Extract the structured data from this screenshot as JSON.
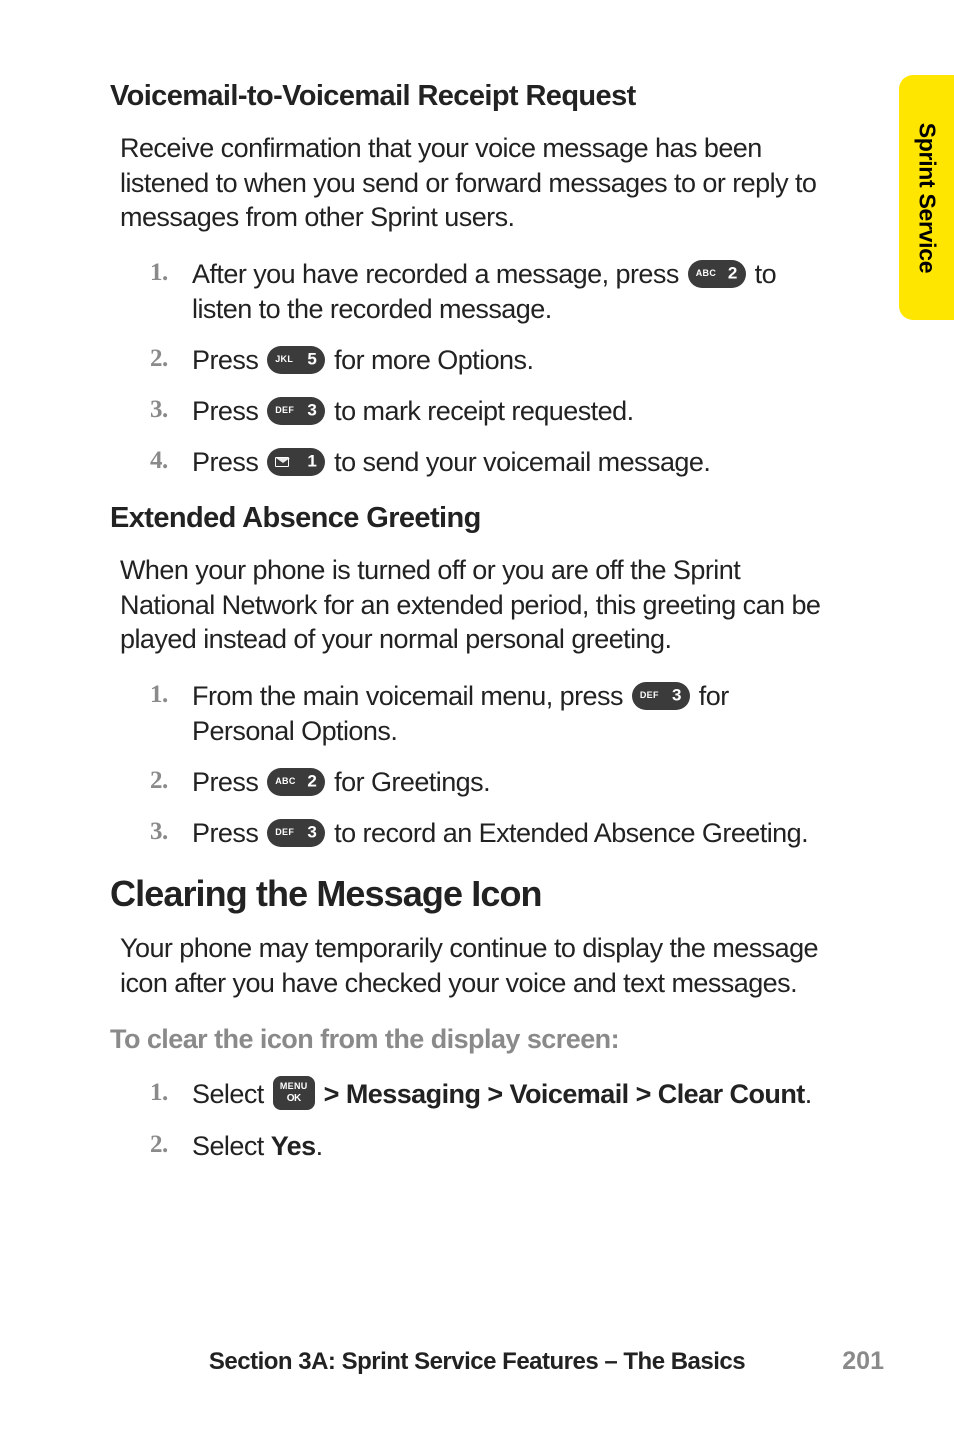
{
  "tab": {
    "label": "Sprint Service",
    "bg": "#ffe600"
  },
  "section1": {
    "heading": "Voicemail-to-Voicemail Receipt Request",
    "intro": "Receive confirmation that your voice message has been listened to when you send or forward messages to or reply to messages from other Sprint users.",
    "steps": [
      {
        "n": "1.",
        "pre": "After you have recorded a message, press ",
        "key": {
          "sup": "ABC",
          "main": "2"
        },
        "post": " to listen to the recorded message."
      },
      {
        "n": "2.",
        "pre": "Press ",
        "key": {
          "sup": "JKL",
          "main": "5"
        },
        "post": " for more Options."
      },
      {
        "n": "3.",
        "pre": "Press ",
        "key": {
          "sup": "DEF",
          "main": "3"
        },
        "post": " to mark receipt requested."
      },
      {
        "n": "4.",
        "pre": "Press ",
        "key": {
          "sup": "ENV",
          "main": "1"
        },
        "post": " to send your voicemail message."
      }
    ]
  },
  "section2": {
    "heading": "Extended Absence Greeting",
    "intro": "When your phone is turned off or you are off the Sprint National Network for an extended period, this greeting can be played instead of your normal personal greeting.",
    "steps": [
      {
        "n": "1.",
        "pre": "From the main voicemail menu, press ",
        "key": {
          "sup": "DEF",
          "main": "3"
        },
        "post": " for Personal Options."
      },
      {
        "n": "2.",
        "pre": "Press ",
        "key": {
          "sup": "ABC",
          "main": "2"
        },
        "post": " for Greetings."
      },
      {
        "n": "3.",
        "pre": "Press ",
        "key": {
          "sup": "DEF",
          "main": "3"
        },
        "post": " to record an Extended Absence Greeting."
      }
    ]
  },
  "section3": {
    "heading": "Clearing the Message Icon",
    "intro": "Your phone may temporarily continue to display the message icon after you have checked your voice and text messages.",
    "subhead": "To clear the icon from the display screen:",
    "steps": [
      {
        "n": "1.",
        "pre": "Select ",
        "menu": {
          "top": "MENU",
          "bot": "OK"
        },
        "boldpost": " > Messaging > Voicemail > Clear Count",
        "post": "."
      },
      {
        "n": "2.",
        "pre": "Select ",
        "boldpost": "Yes",
        "post": "."
      }
    ]
  },
  "footer": {
    "text": "Section 3A: Sprint Service Features – The Basics",
    "page": "201"
  }
}
